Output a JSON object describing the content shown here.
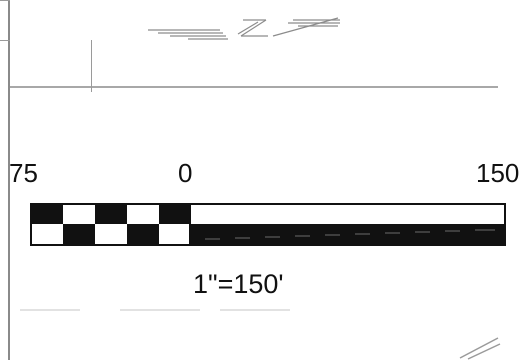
{
  "scale": {
    "labels": {
      "left": "75",
      "zero": "0",
      "right": "150"
    },
    "ratio_text": "1\"=150'"
  },
  "colors": {
    "ink": "#111111",
    "line_gray": "#a8a8a8",
    "paper": "#ffffff"
  },
  "icons": {
    "north_arrow": "north-arrow-icon"
  }
}
